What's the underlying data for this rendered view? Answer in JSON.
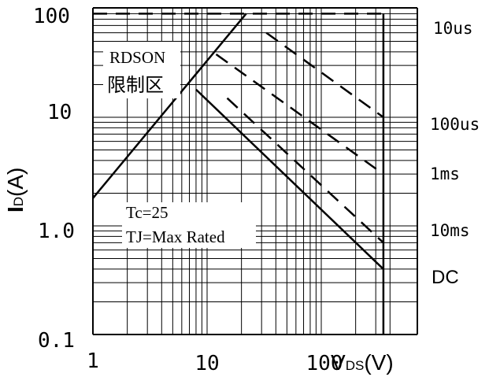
{
  "chart_data": {
    "type": "line",
    "title": "",
    "x_axis": {
      "label_main": "V",
      "label_sub": "DS",
      "label_unit": "(V)",
      "scale": "log",
      "range": [
        1,
        400
      ],
      "tick_labels": [
        "1",
        "10",
        "100"
      ]
    },
    "y_axis": {
      "label_main": "I",
      "label_sub": "D",
      "label_unit": "(A)",
      "scale": "log",
      "range": [
        0.1,
        100
      ],
      "tick_labels": [
        "0.1",
        "1.0",
        "10",
        "100"
      ]
    },
    "grid": true,
    "series": [
      {
        "name": "RDSON",
        "style": "solid",
        "x": [
          1,
          22
        ],
        "y": [
          1.8,
          90
        ]
      },
      {
        "name": "DC",
        "style": "solid",
        "x": [
          8,
          350
        ],
        "y": [
          18,
          0.4
        ]
      },
      {
        "name": "10us",
        "style": "dashed",
        "x": [
          1,
          350
        ],
        "y": [
          90,
          90
        ]
      },
      {
        "name": "100us",
        "style": "dashed",
        "x": [
          33,
          350
        ],
        "y": [
          60,
          10
        ]
      },
      {
        "name": "1ms",
        "style": "dashed",
        "x": [
          12,
          350
        ],
        "y": [
          38,
          3
        ]
      },
      {
        "name": "10ms",
        "style": "dashed",
        "x": [
          15,
          350
        ],
        "y": [
          15,
          0.7
        ]
      },
      {
        "name": "limit",
        "style": "solid",
        "x": [
          350,
          350
        ],
        "y": [
          90,
          0.1
        ]
      }
    ],
    "curve_labels": [
      "10us",
      "100us",
      "1ms",
      "10ms",
      "DC"
    ],
    "annotations": {
      "rdson_text": "RDSON",
      "rdson_cjk": "限制区",
      "tc_text": "Tc=25",
      "tj_text": "TJ=Max Rated"
    }
  }
}
